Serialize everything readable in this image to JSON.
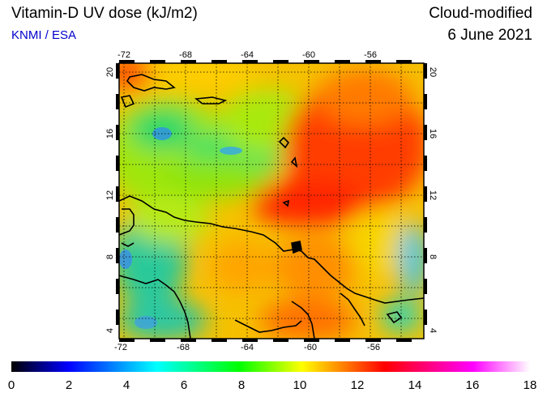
{
  "header": {
    "title": "Vitamin-D UV dose (kJ/m2)",
    "source": "KNMI / ESA",
    "product": "Cloud-modified",
    "date": "6 June 2021"
  },
  "map": {
    "lon_range": [
      -73,
      -53
    ],
    "lat_range": [
      3,
      21
    ],
    "lon_ticks": [
      "-72",
      "-68",
      "-64",
      "-60",
      "-56"
    ],
    "lat_ticks": [
      "20",
      "16",
      "12",
      "8",
      "4"
    ],
    "grid": true,
    "grid_style": "dotted"
  },
  "colorbar": {
    "min": 0,
    "max": 18,
    "tick_labels": [
      "0",
      "2",
      "4",
      "6",
      "8",
      "10",
      "12",
      "14",
      "16",
      "18"
    ],
    "colors": [
      "#000000",
      "#0000ff",
      "#00ffff",
      "#00ff00",
      "#ffff00",
      "#ff0000",
      "#ff00ff",
      "#ffffff"
    ]
  }
}
